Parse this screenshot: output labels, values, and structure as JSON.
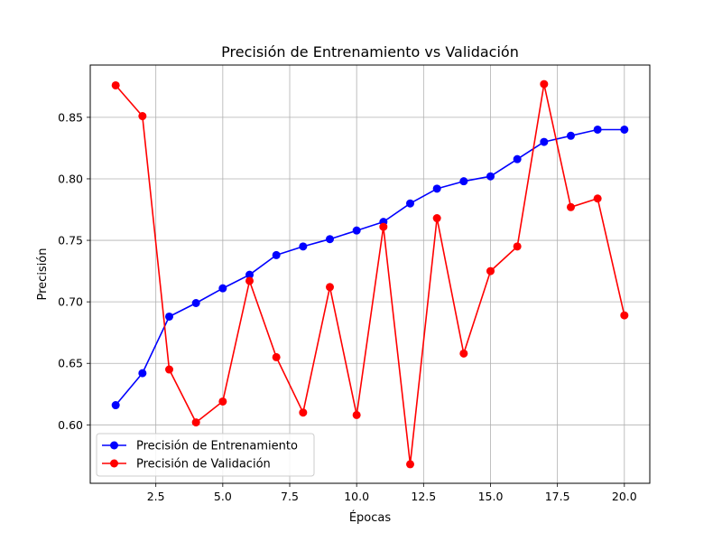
{
  "chart_data": {
    "type": "line",
    "title": "Precisión de Entrenamiento vs Validación",
    "xlabel": "Épocas",
    "ylabel": "Precisión",
    "xlim": [
      0.05,
      20.95
    ],
    "ylim": [
      0.5525,
      0.8925
    ],
    "xticks": [
      2.5,
      5.0,
      7.5,
      10.0,
      12.5,
      15.0,
      17.5,
      20.0
    ],
    "xtick_labels": [
      "2.5",
      "5.0",
      "7.5",
      "10.0",
      "12.5",
      "15.0",
      "17.5",
      "20.0"
    ],
    "yticks": [
      0.6,
      0.65,
      0.7,
      0.75,
      0.8,
      0.85
    ],
    "ytick_labels": [
      "0.60",
      "0.65",
      "0.70",
      "0.75",
      "0.80",
      "0.85"
    ],
    "grid": true,
    "legend_position": "lower-left",
    "x": [
      1,
      2,
      3,
      4,
      5,
      6,
      7,
      8,
      9,
      10,
      11,
      12,
      13,
      14,
      15,
      16,
      17,
      18,
      19,
      20
    ],
    "series": [
      {
        "name": "Precisión de Entrenamiento",
        "color": "#0000ff",
        "values": [
          0.616,
          0.642,
          0.688,
          0.699,
          0.711,
          0.722,
          0.738,
          0.745,
          0.751,
          0.758,
          0.765,
          0.78,
          0.792,
          0.798,
          0.802,
          0.816,
          0.83,
          0.835,
          0.84,
          0.84
        ]
      },
      {
        "name": "Precisión de Validación",
        "color": "#ff0000",
        "values": [
          0.876,
          0.851,
          0.645,
          0.602,
          0.619,
          0.717,
          0.655,
          0.61,
          0.712,
          0.608,
          0.761,
          0.568,
          0.768,
          0.658,
          0.725,
          0.745,
          0.877,
          0.777,
          0.784,
          0.689
        ]
      }
    ]
  }
}
